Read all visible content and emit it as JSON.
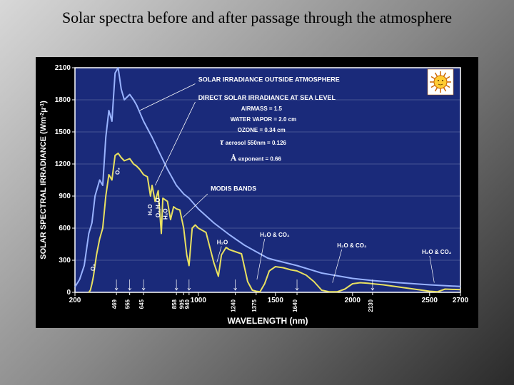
{
  "slide": {
    "title": "Solar spectra before and after passage through the atmosphere",
    "background_gradient": [
      "#d8d8d8",
      "#888888",
      "#2a2a2a"
    ]
  },
  "chart": {
    "type": "line",
    "plot_bg": "#1a2a7a",
    "outer_bg": "#000000",
    "axis_color": "#ffffff",
    "grid_color": "#ffffff",
    "xlabel": "WAVELENGTH (nm)",
    "ylabel_line1": "SOLAR SPECTRAL IRRADIANCE (Wm",
    "ylabel_sup1": "-2",
    "ylabel_mid": "μ",
    "ylabel_sup2": "-1",
    "ylabel_end": ")",
    "xlim": [
      200,
      2700
    ],
    "ylim": [
      0,
      2100
    ],
    "xticks_major": [
      200,
      1000,
      1500,
      2000,
      2500,
      2700
    ],
    "xticks_minor": [
      469,
      555,
      645,
      858,
      905,
      940,
      1240,
      1375,
      1640,
      2130
    ],
    "yticks": [
      0,
      300,
      600,
      900,
      1200,
      1500,
      1800,
      2100
    ],
    "series": {
      "outside": {
        "label": "SOLAR IRRADIANCE OUTSIDE ATMOSPHERE",
        "color": "#99b3ff",
        "width": 2,
        "points": [
          [
            200,
            50
          ],
          [
            230,
            120
          ],
          [
            260,
            250
          ],
          [
            290,
            550
          ],
          [
            310,
            650
          ],
          [
            330,
            900
          ],
          [
            360,
            1050
          ],
          [
            380,
            1000
          ],
          [
            400,
            1450
          ],
          [
            420,
            1700
          ],
          [
            440,
            1600
          ],
          [
            460,
            2050
          ],
          [
            480,
            2100
          ],
          [
            500,
            1900
          ],
          [
            520,
            1800
          ],
          [
            555,
            1850
          ],
          [
            580,
            1800
          ],
          [
            600,
            1750
          ],
          [
            645,
            1600
          ],
          [
            700,
            1450
          ],
          [
            750,
            1300
          ],
          [
            800,
            1150
          ],
          [
            858,
            1000
          ],
          [
            905,
            920
          ],
          [
            940,
            880
          ],
          [
            1000,
            780
          ],
          [
            1100,
            650
          ],
          [
            1200,
            540
          ],
          [
            1240,
            500
          ],
          [
            1300,
            440
          ],
          [
            1375,
            380
          ],
          [
            1450,
            320
          ],
          [
            1500,
            300
          ],
          [
            1640,
            250
          ],
          [
            1800,
            180
          ],
          [
            2000,
            130
          ],
          [
            2130,
            110
          ],
          [
            2300,
            90
          ],
          [
            2500,
            70
          ],
          [
            2700,
            55
          ]
        ]
      },
      "sealevel": {
        "label": "DIRECT SOLAR IRRADIANCE AT SEA LEVEL",
        "color": "#e8e060",
        "width": 2,
        "points": [
          [
            290,
            0
          ],
          [
            300,
            20
          ],
          [
            310,
            80
          ],
          [
            320,
            150
          ],
          [
            340,
            350
          ],
          [
            360,
            500
          ],
          [
            380,
            600
          ],
          [
            400,
            900
          ],
          [
            420,
            1100
          ],
          [
            440,
            1050
          ],
          [
            460,
            1280
          ],
          [
            480,
            1300
          ],
          [
            500,
            1260
          ],
          [
            520,
            1230
          ],
          [
            555,
            1250
          ],
          [
            580,
            1200
          ],
          [
            600,
            1180
          ],
          [
            620,
            1150
          ],
          [
            645,
            1100
          ],
          [
            670,
            1080
          ],
          [
            690,
            900
          ],
          [
            700,
            1000
          ],
          [
            720,
            850
          ],
          [
            740,
            950
          ],
          [
            760,
            550
          ],
          [
            770,
            880
          ],
          [
            800,
            850
          ],
          [
            820,
            680
          ],
          [
            840,
            800
          ],
          [
            858,
            780
          ],
          [
            880,
            770
          ],
          [
            905,
            600
          ],
          [
            925,
            350
          ],
          [
            940,
            250
          ],
          [
            960,
            600
          ],
          [
            980,
            630
          ],
          [
            1000,
            600
          ],
          [
            1050,
            560
          ],
          [
            1100,
            280
          ],
          [
            1130,
            150
          ],
          [
            1150,
            350
          ],
          [
            1180,
            420
          ],
          [
            1200,
            400
          ],
          [
            1240,
            380
          ],
          [
            1280,
            360
          ],
          [
            1320,
            100
          ],
          [
            1350,
            20
          ],
          [
            1375,
            10
          ],
          [
            1400,
            5
          ],
          [
            1430,
            80
          ],
          [
            1460,
            200
          ],
          [
            1500,
            240
          ],
          [
            1550,
            230
          ],
          [
            1600,
            210
          ],
          [
            1640,
            200
          ],
          [
            1700,
            160
          ],
          [
            1750,
            100
          ],
          [
            1800,
            20
          ],
          [
            1850,
            5
          ],
          [
            1900,
            5
          ],
          [
            1950,
            30
          ],
          [
            2000,
            80
          ],
          [
            2050,
            90
          ],
          [
            2100,
            85
          ],
          [
            2130,
            80
          ],
          [
            2200,
            70
          ],
          [
            2300,
            50
          ],
          [
            2400,
            30
          ],
          [
            2500,
            10
          ],
          [
            2550,
            5
          ],
          [
            2600,
            30
          ],
          [
            2700,
            25
          ]
        ]
      }
    },
    "legend_box": {
      "line1": "SOLAR IRRADIANCE OUTSIDE ATMOSPHERE",
      "line2": "DIRECT SOLAR IRRADIANCE AT SEA LEVEL",
      "sub1": "AIRMASS = 1.5",
      "sub2": "WATER VAPOR = 2.0 cm",
      "sub3": "OZONE = 0.34 cm",
      "sub4_prefix": "τ",
      "sub4": " aerosol 550nm = 0.126",
      "sub5_prefix": "Å",
      "sub5": " exponent = 0.66"
    },
    "modis_label": "MODIS BANDS",
    "absorbers": {
      "o3_high": "O₃",
      "o3_low": "O₃",
      "h2o_1": "H₂O",
      "o2h2o": "O₂,H₂O",
      "h2o_2": "H₂O",
      "h2o_760": "H₂O",
      "h2o_co2_1": "H₂O & CO₂",
      "h2o_co2_2": "H₂O & CO₂",
      "h2o_co2_3": "H₂O & CO₂"
    },
    "sun_icon": {
      "bg": "#ffffff",
      "face": "#ffcc33",
      "border": "#cc6600"
    }
  }
}
